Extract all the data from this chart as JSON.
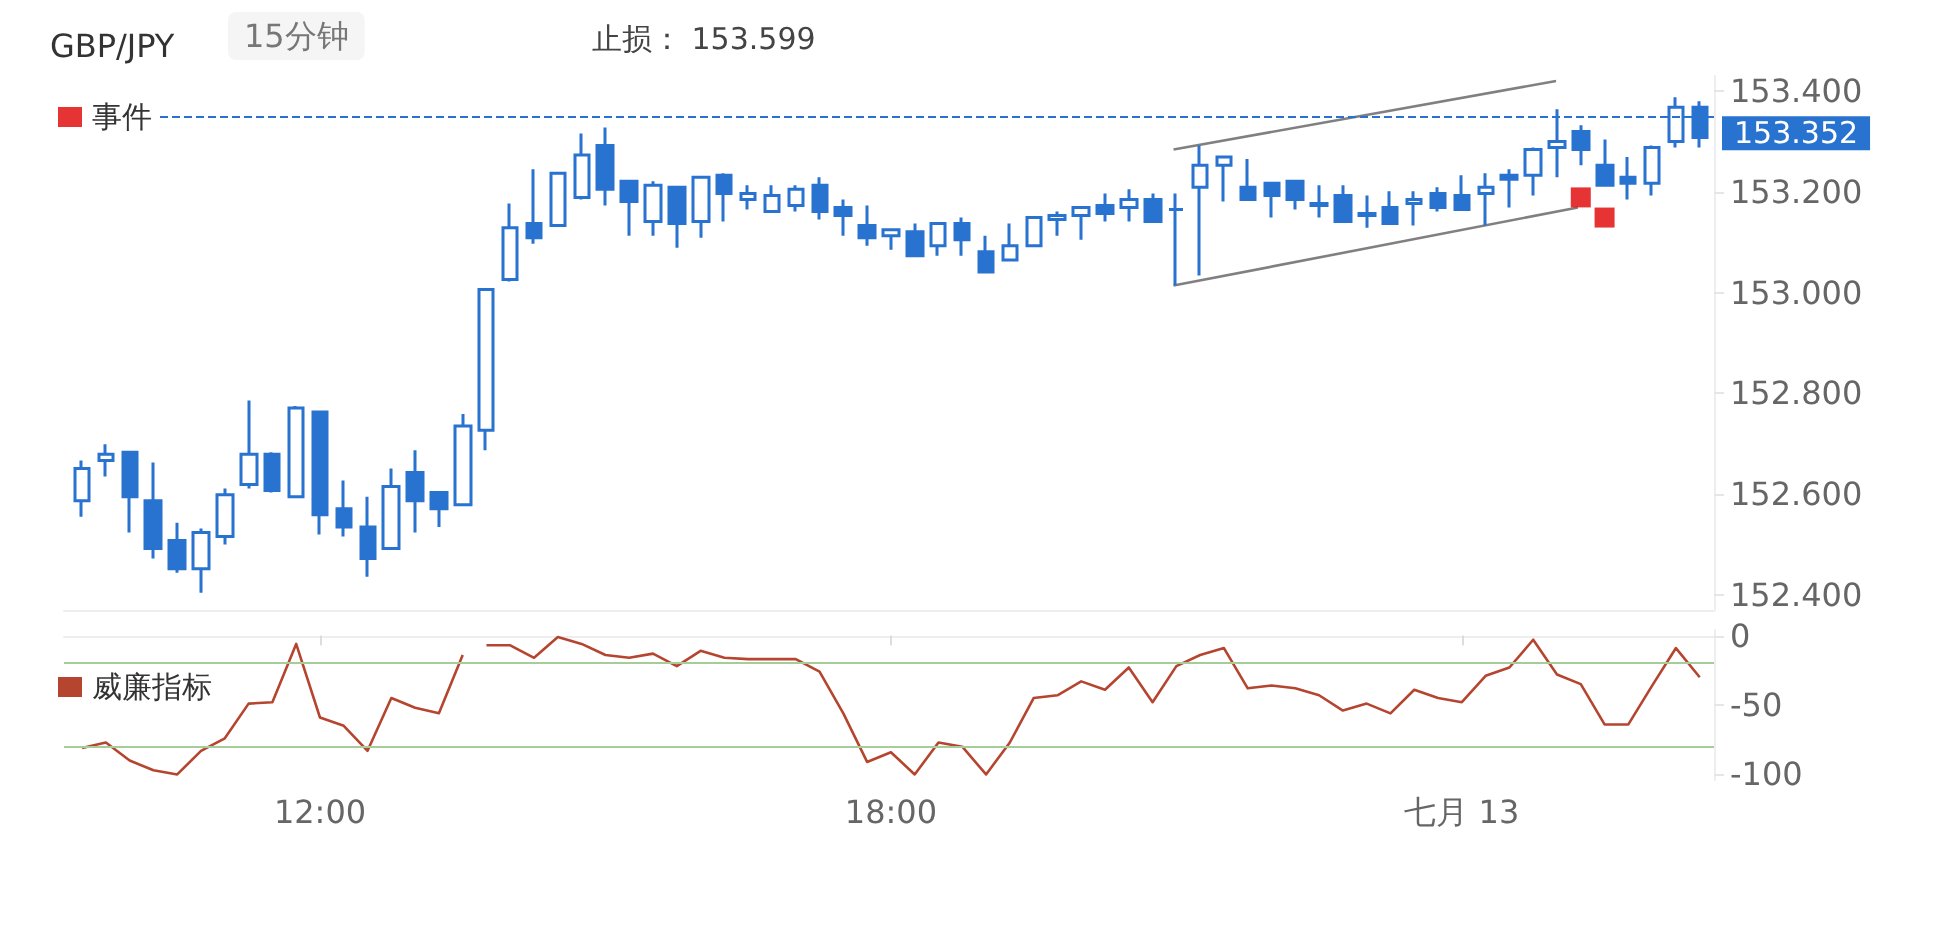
{
  "chart_data": [
    {
      "type": "candlestick",
      "title": "GBP/JPY",
      "subtitle": "15分钟",
      "annotations": [
        "止损： 153.599"
      ],
      "color": "#2872d0",
      "legend": "top left",
      "tick_labels": "y",
      "xlim": [
        9.31,
        26.65
      ],
      "ylim": [
        152.37,
        153.43
      ],
      "yticks": [
        {
          "value": 152.4,
          "label": "152.400"
        },
        {
          "value": 152.6,
          "label": "152.600"
        },
        {
          "value": 152.8,
          "label": "152.800"
        },
        {
          "value": 153,
          "label": "153.000"
        },
        {
          "value": 153.2,
          "label": "153.200"
        },
        {
          "value": 153.4,
          "label": "153.400"
        }
      ],
      "x": [
        9.5,
        9.75,
        10,
        10.25,
        10.5,
        10.75,
        11,
        11.25,
        11.5,
        11.75,
        12,
        12.25,
        12.5,
        12.75,
        13,
        13.25,
        13.5,
        13.75,
        14,
        14.25,
        14.5,
        14.75,
        15,
        15.25,
        15.5,
        15.75,
        16,
        16.25,
        16.5,
        16.75,
        17,
        17.25,
        17.5,
        17.75,
        18,
        18.25,
        18.5,
        18.75,
        19,
        19.25,
        19.5,
        19.75,
        20,
        20.25,
        20.5,
        20.75,
        21,
        21.25,
        21.5,
        21.75,
        22,
        22.25,
        22.5,
        22.75,
        23,
        23.25,
        23.5,
        23.75,
        24,
        24.25,
        24.5,
        24.75,
        25,
        25.25,
        25.5,
        25.75,
        26,
        26.25,
        26.5
      ],
      "ohlc": [
        [
          152.587,
          152.667,
          152.555,
          152.651
        ],
        [
          152.667,
          152.699,
          152.635,
          152.679
        ],
        [
          152.683,
          152.683,
          152.524,
          152.595
        ],
        [
          152.587,
          152.663,
          152.472,
          152.492
        ],
        [
          152.508,
          152.543,
          152.444,
          152.452
        ],
        [
          152.452,
          152.532,
          152.404,
          152.524
        ],
        [
          152.516,
          152.611,
          152.5,
          152.599
        ],
        [
          152.619,
          152.786,
          152.611,
          152.679
        ],
        [
          152.679,
          152.683,
          152.603,
          152.607
        ],
        [
          152.595,
          152.775,
          152.595,
          152.771
        ],
        [
          152.763,
          152.763,
          152.52,
          152.559
        ],
        [
          152.571,
          152.627,
          152.516,
          152.535
        ],
        [
          152.535,
          152.595,
          152.436,
          152.472
        ],
        [
          152.492,
          152.651,
          152.492,
          152.615
        ],
        [
          152.643,
          152.687,
          152.524,
          152.587
        ],
        [
          152.603,
          152.603,
          152.535,
          152.571
        ],
        [
          152.579,
          152.759,
          152.579,
          152.735
        ],
        [
          152.727,
          153.006,
          152.687,
          153.006
        ],
        [
          153.026,
          153.177,
          153.022,
          153.129
        ],
        [
          153.137,
          153.245,
          153.097,
          153.109
        ],
        [
          153.133,
          153.237,
          153.133,
          153.237
        ],
        [
          153.189,
          153.316,
          153.185,
          153.273
        ],
        [
          153.292,
          153.328,
          153.173,
          153.205
        ],
        [
          153.221,
          153.221,
          153.113,
          153.181
        ],
        [
          153.141,
          153.221,
          153.113,
          153.213
        ],
        [
          153.209,
          153.209,
          153.089,
          153.137
        ],
        [
          153.141,
          153.229,
          153.109,
          153.229
        ],
        [
          153.233,
          153.237,
          153.141,
          153.197
        ],
        [
          153.185,
          153.213,
          153.165,
          153.197
        ],
        [
          153.161,
          153.213,
          153.161,
          153.193
        ],
        [
          153.173,
          153.213,
          153.161,
          153.205
        ],
        [
          153.213,
          153.229,
          153.145,
          153.161
        ],
        [
          153.169,
          153.185,
          153.113,
          153.153
        ],
        [
          153.133,
          153.173,
          153.093,
          153.109
        ],
        [
          153.113,
          153.125,
          153.085,
          153.125
        ],
        [
          153.121,
          153.137,
          153.073,
          153.073
        ],
        [
          153.093,
          153.137,
          153.073,
          153.137
        ],
        [
          153.137,
          153.149,
          153.073,
          153.105
        ],
        [
          153.081,
          153.113,
          153.041,
          153.041
        ],
        [
          153.065,
          153.137,
          153.065,
          153.093
        ],
        [
          153.093,
          153.149,
          153.093,
          153.149
        ],
        [
          153.145,
          153.161,
          153.113,
          153.153
        ],
        [
          153.153,
          153.169,
          153.105,
          153.169
        ],
        [
          153.173,
          153.197,
          153.141,
          153.157
        ],
        [
          153.169,
          153.205,
          153.141,
          153.185
        ],
        [
          153.185,
          153.197,
          153.141,
          153.141
        ],
        [
          153.165,
          153.197,
          153.014,
          153.165
        ],
        [
          153.209,
          153.292,
          153.034,
          153.253
        ],
        [
          153.253,
          153.269,
          153.181,
          153.269
        ],
        [
          153.209,
          153.265,
          153.185,
          153.185
        ],
        [
          153.217,
          153.217,
          153.149,
          153.193
        ],
        [
          153.221,
          153.221,
          153.165,
          153.185
        ],
        [
          153.177,
          153.213,
          153.149,
          153.173
        ],
        [
          153.193,
          153.213,
          153.141,
          153.141
        ],
        [
          153.157,
          153.193,
          153.129,
          153.153
        ],
        [
          153.169,
          153.201,
          153.137,
          153.137
        ],
        [
          153.177,
          153.201,
          153.133,
          153.185
        ],
        [
          153.197,
          153.209,
          153.161,
          153.169
        ],
        [
          153.193,
          153.233,
          153.165,
          153.165
        ],
        [
          153.197,
          153.237,
          153.133,
          153.209
        ],
        [
          153.233,
          153.245,
          153.169,
          153.225
        ],
        [
          153.233,
          153.288,
          153.193,
          153.284
        ],
        [
          153.288,
          153.364,
          153.229,
          153.3
        ],
        [
          153.32,
          153.332,
          153.253,
          153.284
        ],
        [
          153.253,
          153.304,
          153.213,
          153.213
        ],
        [
          153.229,
          153.269,
          153.185,
          153.217
        ],
        [
          153.217,
          153.292,
          153.193,
          153.288
        ],
        [
          153.3,
          153.388,
          153.288,
          153.368
        ],
        [
          153.368,
          153.38,
          153.288,
          153.308
        ]
      ],
      "series": [
        {
          "type": "scatter",
          "name": "事件",
          "color": "#e00000",
          "marker": "square",
          "x": [
            25.25,
            25.5
          ],
          "values": [
            153.189,
            153.149
          ]
        },
        {
          "type": "line",
          "color": "#808080",
          "x": [
            20.97,
            24.99
          ],
          "values": [
            153.284,
            153.42
          ]
        },
        {
          "type": "line",
          "color": "#808080",
          "x": [
            20.97,
            25.22
          ],
          "values": [
            153.014,
            153.169
          ]
        }
      ],
      "ref_lines": [
        {
          "axis": "y",
          "value": 153.352,
          "label": "153.352",
          "color": "#2872d0"
        }
      ]
    },
    {
      "type": "line",
      "legend": "left",
      "xlim": [
        9.31,
        26.65
      ],
      "xticks": [
        {
          "value": 12,
          "label": "12:00"
        },
        {
          "value": 18,
          "label": "18:00"
        },
        {
          "value": 24,
          "label": "七月 13"
        }
      ],
      "ylim": [
        -104,
        4
      ],
      "yticks": [
        0,
        -50,
        -100
      ],
      "series": [
        {
          "name": "威廉指标",
          "color": "#b5452f",
          "x": [
            9.5,
            9.75,
            10,
            10.25,
            10.5,
            10.75,
            11,
            11.25,
            11.5,
            11.75,
            12,
            12.25,
            12.5,
            12.75,
            13,
            13.25,
            13.5,
            13.625,
            13.75,
            14,
            14.25,
            14.5,
            14.75,
            15,
            15.25,
            15.5,
            15.75,
            16,
            16.25,
            16.5,
            16.75,
            17,
            17.25,
            17.5,
            17.75,
            18,
            18.25,
            18.5,
            18.75,
            19,
            19.25,
            19.5,
            19.75,
            20,
            20.25,
            20.5,
            20.75,
            21,
            21.25,
            21.5,
            21.75,
            22,
            22.25,
            22.5,
            22.75,
            23,
            23.25,
            23.5,
            23.75,
            24,
            24.25,
            24.5,
            24.75,
            25,
            25.25,
            25.5,
            25.75,
            26,
            26.25,
            26.5
          ],
          "values": [
            -81,
            -77,
            -90,
            -97,
            -100,
            -83,
            -74,
            -49,
            -48,
            -6,
            -59,
            -65,
            -83,
            -45,
            -52,
            -56,
            -14,
            null,
            -7,
            -7,
            -16,
            -1,
            -6,
            -14,
            -16,
            -13,
            -22,
            -11,
            -16,
            -17,
            -17,
            -17,
            -26,
            -56,
            -91,
            -84,
            -100,
            -77,
            -80,
            -100,
            -77,
            -45,
            -43,
            -33,
            -39,
            -23,
            -48,
            -22,
            -14,
            -9,
            -38,
            -36,
            -38,
            -43,
            -54,
            -49,
            -56,
            -39,
            -45,
            -48,
            -29,
            -23,
            -3,
            -28,
            -35,
            -64,
            -64,
            -36,
            -9,
            -30
          ]
        }
      ],
      "ref_lines": [
        {
          "axis": "y",
          "value": -20,
          "color": "#a6cc9a"
        },
        {
          "axis": "y",
          "value": -80,
          "color": "#a6cc9a"
        }
      ]
    }
  ]
}
